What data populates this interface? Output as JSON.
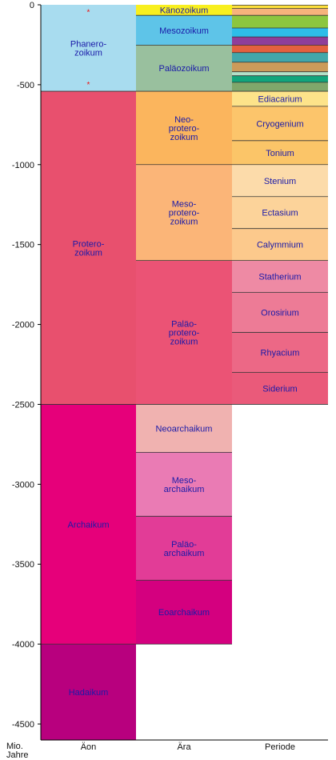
{
  "axis": {
    "unit_lines": [
      "Mio.",
      "Jahre"
    ],
    "ticks": [
      0,
      -500,
      -1000,
      -1500,
      -2000,
      -2500,
      -3000,
      -3500,
      -4000,
      -4500
    ],
    "ymin": -4600,
    "ymax": 0
  },
  "columns": [
    "Äon",
    "Ära",
    "Periode"
  ],
  "eons": [
    {
      "name": "Phanerozoikum",
      "lines": [
        "Phanero-",
        "zoikum"
      ],
      "start": 0,
      "end": -541,
      "color": "#a8dcef"
    },
    {
      "name": "Proterozoikum",
      "lines": [
        "Protero-",
        "zoikum"
      ],
      "start": -541,
      "end": -2500,
      "color": "#e8506e"
    },
    {
      "name": "Archaikum",
      "lines": [
        "Archaikum"
      ],
      "start": -2500,
      "end": -4000,
      "color": "#e6007a"
    },
    {
      "name": "Hadaikum",
      "lines": [
        "Hadaikum"
      ],
      "start": -4000,
      "end": -4600,
      "color": "#b8007e"
    }
  ],
  "eras": [
    {
      "name": "Känozoikum",
      "lines": [
        "Känozoikum"
      ],
      "start": 0,
      "end": -66,
      "color": "#f8ef1e"
    },
    {
      "name": "Mesozoikum",
      "lines": [
        "Mesozoikum"
      ],
      "start": -66,
      "end": -252,
      "color": "#5ec4e8"
    },
    {
      "name": "Paläozoikum",
      "lines": [
        "Paläozoikum"
      ],
      "start": -252,
      "end": -541,
      "color": "#99c09e"
    },
    {
      "name": "Neoproterozoikum",
      "lines": [
        "Neo-",
        "protero-",
        "zoikum"
      ],
      "start": -541,
      "end": -1000,
      "color": "#fbb55d"
    },
    {
      "name": "Mesoproterozoikum",
      "lines": [
        "Meso-",
        "protero-",
        "zoikum"
      ],
      "start": -1000,
      "end": -1600,
      "color": "#fbb578"
    },
    {
      "name": "Paläoproterozoikum",
      "lines": [
        "Paläo-",
        "protero-",
        "zoikum"
      ],
      "start": -1600,
      "end": -2500,
      "color": "#eb5375"
    },
    {
      "name": "Neoarchaikum",
      "lines": [
        "Neoarchaikum"
      ],
      "start": -2500,
      "end": -2800,
      "color": "#f0b2b0"
    },
    {
      "name": "Mesoarchaikum",
      "lines": [
        "Meso-",
        "archaikum"
      ],
      "start": -2800,
      "end": -3200,
      "color": "#ea7bb4"
    },
    {
      "name": "Paläoarchaikum",
      "lines": [
        "Paläo-",
        "archaikum"
      ],
      "start": -3200,
      "end": -3600,
      "color": "#e23c97"
    },
    {
      "name": "Eoarchaikum",
      "lines": [
        "Eoarchaikum"
      ],
      "start": -3600,
      "end": -4000,
      "color": "#d4007f"
    }
  ],
  "phanerozoic_periods": [
    {
      "start": 0,
      "end": -2.6,
      "color": "#fde98a"
    },
    {
      "start": -2.6,
      "end": -23,
      "color": "#fde03a"
    },
    {
      "start": -23,
      "end": -66,
      "color": "#f6b37c"
    },
    {
      "start": -66,
      "end": -145,
      "color": "#8cc63f"
    },
    {
      "start": -145,
      "end": -201,
      "color": "#2ebde9"
    },
    {
      "start": -201,
      "end": -252,
      "color": "#8f3e9a"
    },
    {
      "start": -252,
      "end": -299,
      "color": "#e4603f"
    },
    {
      "start": -299,
      "end": -359,
      "color": "#42a7aa"
    },
    {
      "start": -359,
      "end": -419,
      "color": "#cc9b5a"
    },
    {
      "start": -419,
      "end": -444,
      "color": "#b3e0c8"
    },
    {
      "start": -444,
      "end": -485,
      "color": "#12a57c"
    },
    {
      "start": -485,
      "end": -541,
      "color": "#80a76b"
    }
  ],
  "periods": [
    {
      "name": "Ediacarium",
      "start": -541,
      "end": -635,
      "color": "#fde38a"
    },
    {
      "name": "Cryogenium",
      "start": -635,
      "end": -850,
      "color": "#fcc56b"
    },
    {
      "name": "Tonium",
      "start": -850,
      "end": -1000,
      "color": "#fbc568"
    },
    {
      "name": "Stenium",
      "start": -1000,
      "end": -1200,
      "color": "#fcdbaa"
    },
    {
      "name": "Ectasium",
      "start": -1200,
      "end": -1400,
      "color": "#fcd39a"
    },
    {
      "name": "Calymmium",
      "start": -1400,
      "end": -1600,
      "color": "#fcc98c"
    },
    {
      "name": "Statherium",
      "start": -1600,
      "end": -1800,
      "color": "#ee8aa4"
    },
    {
      "name": "Orosirium",
      "start": -1800,
      "end": -2050,
      "color": "#ed7b96"
    },
    {
      "name": "Rhyacium",
      "start": -2050,
      "end": -2300,
      "color": "#ec6886"
    },
    {
      "name": "Siderium",
      "start": -2300,
      "end": -2500,
      "color": "#ea5a7a"
    }
  ],
  "markers": [
    {
      "symbol": "*",
      "at": -33,
      "color": "#e11"
    },
    {
      "symbol": "*",
      "at": -486,
      "color": "#e11"
    }
  ]
}
